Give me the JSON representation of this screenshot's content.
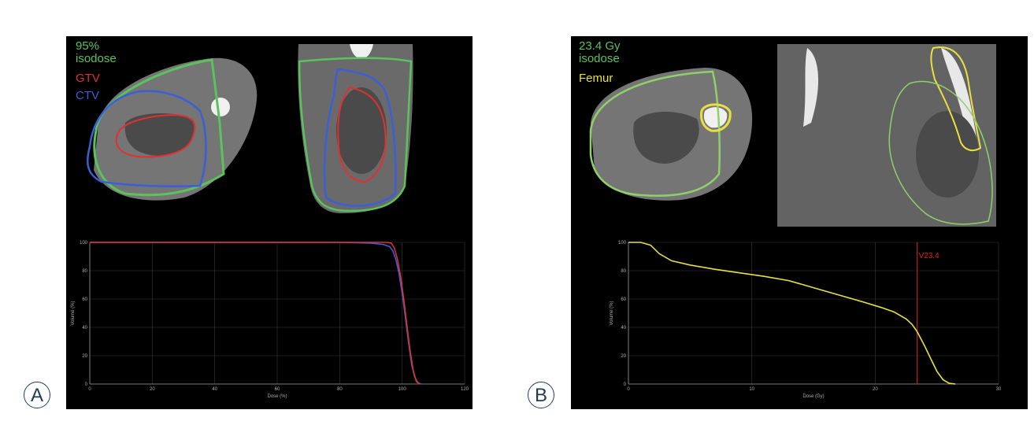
{
  "panels": {
    "a": {
      "letter": "A",
      "legend": {
        "isodose_line1": "95%",
        "isodose_line2": "isodose",
        "gtv": "GTV",
        "ctv": "CTV"
      },
      "colors": {
        "isodose": "#5cc25c",
        "gtv": "#e03030",
        "ctv": "#3a5fd8"
      }
    },
    "b": {
      "letter": "B",
      "legend": {
        "isodose_line1": "23.4 Gy",
        "isodose_line2": "isodose",
        "femur": "Femur"
      },
      "colors": {
        "isodose": "#8fd06a",
        "femur": "#e8e040"
      }
    }
  },
  "chart_data": [
    {
      "type": "line",
      "xlabel": "Dose (%)",
      "ylabel": "Volume (%)",
      "xlim": [
        0,
        120
      ],
      "ylim": [
        0,
        100
      ],
      "xticks": [
        0,
        20,
        40,
        60,
        80,
        100,
        120
      ],
      "yticks": [
        0,
        20,
        40,
        60,
        80,
        100
      ],
      "grid": true,
      "series": [
        {
          "color": "#3a5fd8",
          "x": [
            0,
            80,
            90,
            94,
            96,
            97,
            98,
            99,
            100,
            101,
            102,
            103,
            104,
            105,
            106
          ],
          "y": [
            100,
            100,
            99.5,
            98.5,
            97,
            94,
            88,
            78,
            64,
            48,
            30,
            14,
            5,
            1,
            0
          ]
        },
        {
          "color": "#e03030",
          "x": [
            0,
            90,
            95,
            96.5,
            97.5,
            98.5,
            99.5,
            100.5,
            101.5,
            102.5,
            103.5,
            104.5,
            105.5
          ],
          "y": [
            100,
            100,
            100,
            99.5,
            96,
            88,
            76,
            60,
            42,
            24,
            10,
            2,
            0
          ]
        }
      ]
    },
    {
      "type": "line",
      "xlabel": "Dose (Gy)",
      "ylabel": "Volume (%)",
      "xlim": [
        0,
        30
      ],
      "ylim": [
        0,
        100
      ],
      "xticks": [
        0,
        10,
        20,
        30
      ],
      "yticks": [
        0,
        20,
        40,
        60,
        80,
        100
      ],
      "grid": true,
      "vline": {
        "x": 23.4,
        "label": "V23.4",
        "color": "#e02020"
      },
      "series": [
        {
          "color": "#e8e040",
          "x": [
            0,
            1,
            1.8,
            2.5,
            3.5,
            5,
            7,
            9,
            11,
            13,
            15,
            17,
            19,
            20.5,
            21.5,
            22.5,
            23,
            23.4,
            24,
            24.5,
            25,
            25.5,
            26,
            26.5
          ],
          "y": [
            100,
            100,
            98,
            92,
            87,
            84,
            81,
            78.5,
            76,
            73,
            68,
            63,
            58,
            54,
            51,
            46,
            42,
            37,
            27,
            18,
            9,
            3,
            0.5,
            0
          ]
        }
      ]
    }
  ]
}
